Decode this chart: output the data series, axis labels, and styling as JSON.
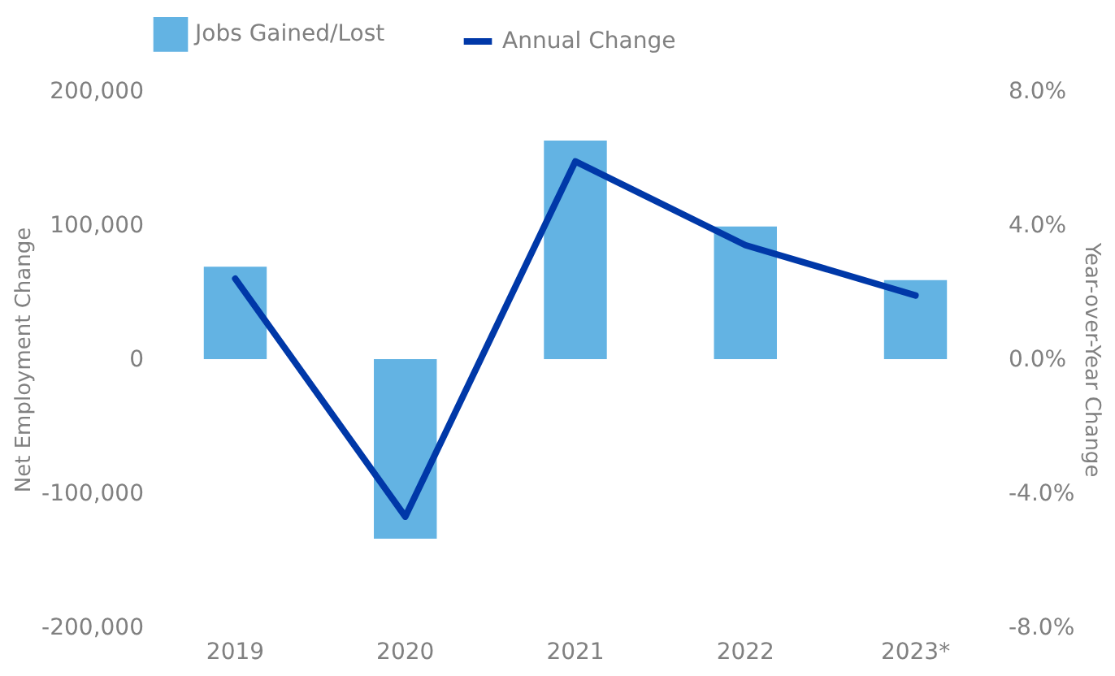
{
  "chart_data": {
    "type": "bar",
    "categories": [
      "2019",
      "2020",
      "2021",
      "2022",
      "2023*"
    ],
    "ylabel": "Net Employment Change",
    "y2label": "Year-over-Year Change",
    "series": [
      {
        "name": "Jobs Gained/Lost",
        "color": "#63b3e3",
        "values": [
          69000,
          -134000,
          163000,
          99000,
          59000
        ]
      },
      {
        "name": "Annual Change",
        "type": "line",
        "axis": "y2",
        "color": "#0038a8",
        "values": [
          2.4,
          -4.7,
          5.9,
          3.4,
          1.9
        ]
      }
    ],
    "ylim": [
      -200000,
      200000
    ],
    "yticks": [
      {
        "value": -200000,
        "label": "-200,000"
      },
      {
        "value": -100000,
        "label": "-100,000"
      },
      {
        "value": 0,
        "label": "0"
      },
      {
        "value": 100000,
        "label": "100,000"
      },
      {
        "value": 200000,
        "label": "200,000"
      }
    ],
    "y2lim": [
      -8,
      8
    ],
    "y2ticks": [
      {
        "value": -8,
        "label": "-8.0%"
      },
      {
        "value": -4,
        "label": "-4.0%"
      },
      {
        "value": 0,
        "label": "0.0%"
      },
      {
        "value": 4,
        "label": "4.0%"
      },
      {
        "value": 8,
        "label": "8.0%"
      }
    ],
    "legend": "top",
    "grid": false
  }
}
